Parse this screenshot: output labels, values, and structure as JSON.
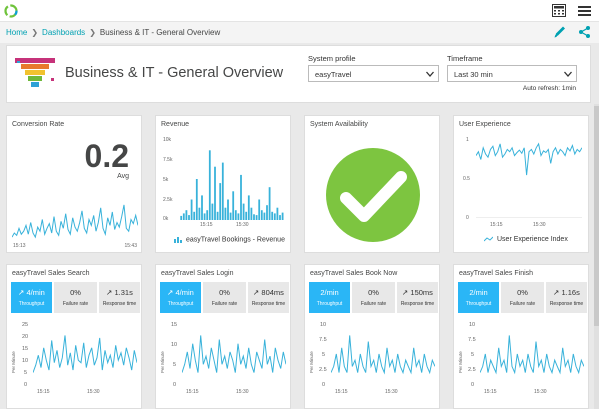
{
  "breadcrumb": {
    "home": "Home",
    "dashboards": "Dashboards",
    "current": "Business & IT - General Overview"
  },
  "header": {
    "title": "Business & IT - General Overview",
    "system_profile_label": "System profile",
    "system_profile_value": "easyTravel",
    "timeframe_label": "Timeframe",
    "timeframe_value": "Last 30 min",
    "auto_refresh": "Auto refresh: 1min"
  },
  "tiles": {
    "conversion": {
      "title": "Conversion Rate",
      "value": "0.2",
      "unit": "Avg",
      "x_start": "15:13",
      "x_end": "15:43"
    },
    "revenue": {
      "title": "Revenue",
      "y_ticks": [
        "10k",
        "7.5k",
        "5k",
        "2.5k",
        "0k"
      ],
      "x_ticks": [
        "15:15",
        "15:30"
      ],
      "legend": "easyTravel Bookings - Revenue"
    },
    "availability": {
      "title": "System Availability"
    },
    "ux": {
      "title": "User Experience",
      "y_ticks": [
        "1",
        "0.5",
        "0"
      ],
      "x_ticks": [
        "15:15",
        "15:30"
      ],
      "legend": "User Experience Index"
    },
    "search": {
      "title": "easyTravel Sales Search",
      "throughput": "4/min",
      "failure": "0%",
      "response": "1.31s",
      "y_ticks": [
        "25",
        "20",
        "15",
        "10",
        "5",
        "0"
      ]
    },
    "login": {
      "title": "easyTravel Sales Login",
      "throughput": "4/min",
      "failure": "0%",
      "response": "804ms",
      "y_ticks": [
        "15",
        "10",
        "5",
        "0"
      ]
    },
    "booknow": {
      "title": "easyTravel Sales Book Now",
      "throughput": "2/min",
      "failure": "0%",
      "response": "150ms",
      "y_ticks": [
        "10",
        "7.5",
        "5",
        "2.5",
        "0"
      ]
    },
    "finish": {
      "title": "easyTravel Sales Finish",
      "throughput": "2/min",
      "failure": "0%",
      "response": "1.16s",
      "y_ticks": [
        "10",
        "7.5",
        "5",
        "2.5",
        "0"
      ]
    }
  },
  "kpi_labels": {
    "throughput": "Throughput",
    "failure": "Failure rate",
    "response": "Response time"
  },
  "axis": {
    "per_minute": "Per Minute",
    "x_ticks": [
      "15:15",
      "15:30"
    ]
  },
  "icons": {
    "logo": "dynatrace-logo-icon",
    "calculator": "calculator-icon",
    "menu": "hamburger-menu-icon",
    "edit": "pencil-icon",
    "share": "share-icon",
    "funnel": "funnel-icon",
    "ok": "checkmark-icon",
    "trend_up": "trend-up-arrow-icon"
  },
  "colors": {
    "accent": "#00a1b2",
    "series": "#38b2da",
    "kpi_blue": "#2ab6f6",
    "ok_green": "#7dc540"
  },
  "chart_data": [
    {
      "type": "line",
      "title": "Conversion Rate",
      "series": [
        {
          "values": [
            0.05,
            0.12,
            0.08,
            0.2,
            0.1,
            0.15,
            0.25,
            0.1,
            0.3,
            0.12,
            0.05,
            0.22,
            0.15,
            0.35,
            0.1,
            0.2,
            0.28,
            0.12,
            0.4,
            0.15,
            0.08,
            0.32,
            0.2,
            0.45,
            0.18,
            0.1,
            0.38,
            0.22,
            0.15,
            0.3,
            0.5,
            0.2,
            0.12,
            0.35,
            0.25,
            0.42,
            0.15,
            0.3,
            0.55,
            0.2,
            0.1,
            0.38,
            0.25,
            0.48,
            0.18,
            0.3,
            0.22,
            0.4,
            0.6,
            0.2,
            0.15,
            0.35,
            0.28,
            0.42,
            0.25
          ]
        }
      ]
    },
    {
      "type": "bar",
      "title": "Revenue",
      "ylim": [
        0,
        10000
      ],
      "series": [
        {
          "name": "easyTravel Bookings - Revenue",
          "values": [
            500,
            800,
            1200,
            600,
            2500,
            1000,
            5000,
            1500,
            3000,
            800,
            1200,
            8500,
            2000,
            6500,
            1000,
            4500,
            7000,
            1500,
            2500,
            900,
            3500,
            1200,
            800,
            5500,
            2000,
            1000,
            3000,
            1500,
            700,
            600,
            2500,
            1200,
            900,
            1800,
            4000,
            1000,
            800,
            1500,
            600,
            900
          ]
        }
      ]
    },
    {
      "type": "line",
      "title": "User Experience",
      "ylim": [
        0,
        1
      ],
      "series": [
        {
          "name": "User Experience Index",
          "values": [
            0.8,
            0.85,
            0.75,
            0.9,
            0.82,
            0.78,
            0.88,
            0.92,
            0.8,
            0.85,
            0.95,
            0.78,
            0.82,
            0.88,
            0.85,
            0.9,
            0.8,
            0.84,
            0.87,
            0.83,
            0.9,
            0.55,
            0.85,
            0.88,
            0.82,
            0.9,
            0.95,
            0.8,
            0.86,
            0.84,
            0.88,
            0.7,
            0.85,
            0.9,
            0.82,
            0.88,
            0.85,
            0.8,
            0.9,
            0.86,
            0.93,
            0.82,
            0.88,
            0.85,
            0.9
          ]
        }
      ]
    },
    {
      "type": "line",
      "title": "easyTravel Sales Search",
      "ylim": [
        0,
        25
      ],
      "series": [
        {
          "values": [
            5,
            8,
            12,
            7,
            15,
            10,
            6,
            18,
            9,
            14,
            7,
            11,
            20,
            8,
            13,
            6,
            16,
            10,
            9,
            17,
            7,
            12,
            15,
            8,
            11,
            19,
            6,
            14,
            9,
            12,
            7,
            16,
            10,
            13,
            8,
            15,
            11,
            6,
            14,
            9
          ]
        }
      ]
    },
    {
      "type": "line",
      "title": "easyTravel Sales Login",
      "ylim": [
        0,
        15
      ],
      "series": [
        {
          "values": [
            3,
            5,
            8,
            4,
            10,
            6,
            3,
            12,
            5,
            7,
            4,
            9,
            6,
            3,
            11,
            5,
            7,
            4,
            8,
            6,
            3,
            10,
            5,
            7,
            4,
            9,
            5,
            3,
            8,
            6,
            4,
            11,
            5,
            7,
            3,
            9,
            6,
            4,
            8,
            5
          ]
        }
      ]
    },
    {
      "type": "line",
      "title": "easyTravel Sales Book Now",
      "ylim": [
        0,
        10
      ],
      "series": [
        {
          "values": [
            2,
            3,
            5,
            2,
            6,
            3,
            2,
            8,
            3,
            4,
            2,
            5,
            3,
            2,
            7,
            3,
            4,
            2,
            5,
            3,
            2,
            6,
            3,
            4,
            2,
            5,
            3,
            2,
            4,
            3,
            2,
            6,
            3,
            4,
            2,
            5,
            3,
            2,
            4,
            3
          ]
        }
      ]
    },
    {
      "type": "line",
      "title": "easyTravel Sales Finish",
      "ylim": [
        0,
        10
      ],
      "series": [
        {
          "values": [
            2,
            3,
            5,
            2,
            4,
            3,
            2,
            6,
            3,
            4,
            2,
            8,
            3,
            2,
            5,
            3,
            4,
            2,
            5,
            3,
            2,
            7,
            3,
            4,
            2,
            5,
            3,
            2,
            4,
            3,
            2,
            6,
            3,
            4,
            2,
            5,
            3,
            2,
            4,
            3
          ]
        }
      ]
    }
  ]
}
